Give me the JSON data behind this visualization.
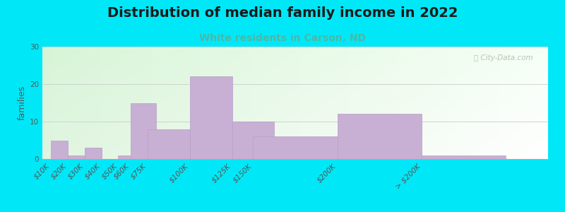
{
  "title": "Distribution of median family income in 2022",
  "subtitle": "White residents in Carson, ND",
  "ylabel": "families",
  "categories": [
    "$10K",
    "$20K",
    "$30K",
    "$40K",
    "$50K",
    "$60K",
    "$75K",
    "$100K",
    "$125K",
    "$150K",
    "$200K",
    "> $200K"
  ],
  "x_positions": [
    10,
    20,
    30,
    40,
    50,
    60,
    75,
    100,
    125,
    150,
    200,
    250
  ],
  "bar_widths": [
    10,
    10,
    10,
    10,
    10,
    15,
    25,
    25,
    25,
    50,
    50,
    50
  ],
  "values": [
    5,
    1,
    3,
    0,
    1,
    15,
    8,
    22,
    10,
    6,
    12,
    1
  ],
  "ylim": [
    0,
    30
  ],
  "yticks": [
    0,
    10,
    20,
    30
  ],
  "bar_color": "#c8afd4",
  "bar_edge_color": "#b89ec8",
  "background_outer": "#00e8f8",
  "grid_color": "#cccccc",
  "title_fontsize": 14,
  "subtitle_fontsize": 10,
  "subtitle_color": "#4ab8a8",
  "ylabel_fontsize": 9,
  "tick_fontsize": 7.5,
  "watermark_text": "ⓘ City-Data.com",
  "watermark_color": "#b0b8b0"
}
